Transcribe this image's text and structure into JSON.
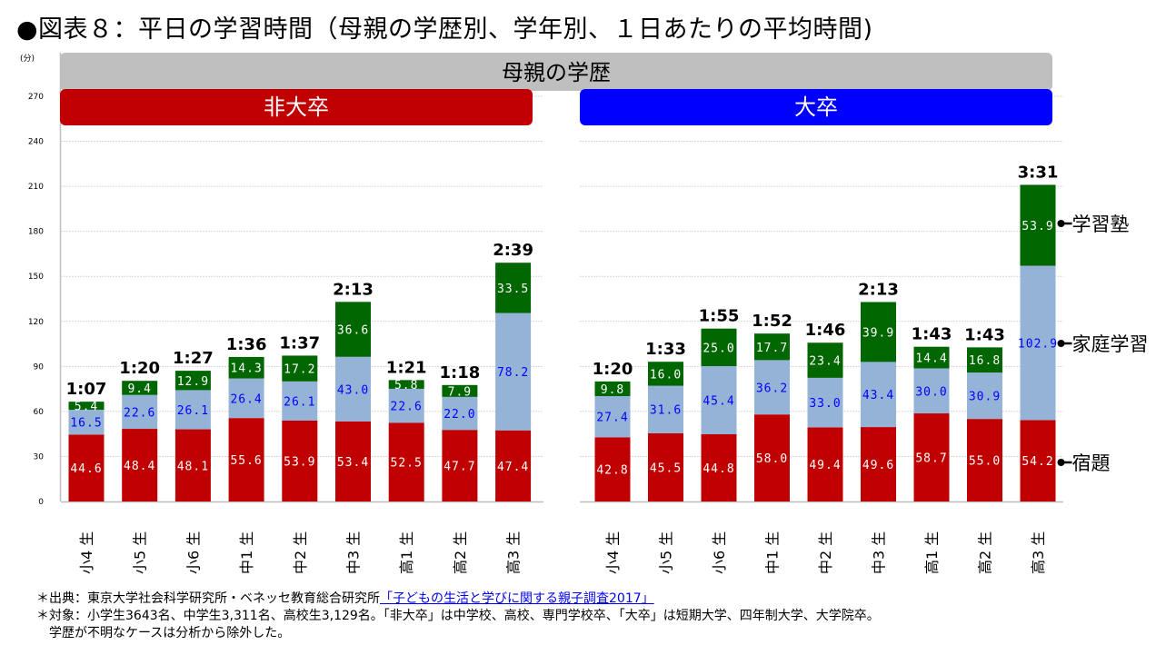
{
  "title": "●図表８：平日の学習時間（母親の学歴別、学年別、１日あたりの平均時間)",
  "banners": {
    "parent": "母親の学歴",
    "left": "非大卒",
    "right": "大卒"
  },
  "colors": {
    "homework": "#c00000",
    "home_study": "#95b3d7",
    "cram_school": "#006600",
    "homework_label": "#ffffff",
    "home_study_label": "#0000ff",
    "cram_school_label": "#ffffff",
    "banner_left": "#c00000",
    "banner_right": "#0000ff",
    "banner_parent": "#bfbfbf",
    "gridline": "#d9d9d9",
    "axis": "#bfbfbf"
  },
  "notes": {
    "source_prefix": "＊出典：東京大学社会科学研究所・ベネッセ教育総合研究所",
    "source_link": "「子どもの生活と学びに関する親子調査2017」",
    "target_line1": "＊対象：小学生3643名、中学生3,311名、高校生3,129名。「非大卒」は中学校、高校、専門学校卒、「大卒」は短期大学、四年制大学、大学院卒。",
    "target_line2": "学歴が不明なケースは分析から除外した。"
  },
  "chart_data": [
    {
      "type": "bar",
      "stacked": true,
      "title": "非大卒",
      "ylabel": "(分)",
      "ylim": [
        0,
        270
      ],
      "yticks": [
        0,
        30,
        60,
        90,
        120,
        150,
        180,
        210,
        240,
        270
      ],
      "grid": true,
      "categories": [
        "小4 生",
        "小5 生",
        "小6 生",
        "中1 生",
        "中2 生",
        "中3 生",
        "高1 生",
        "高2 生",
        "高3 生"
      ],
      "series": [
        {
          "name": "宿題",
          "values": [
            44.6,
            48.4,
            48.1,
            55.6,
            53.9,
            53.4,
            52.5,
            47.7,
            47.4
          ]
        },
        {
          "name": "家庭学習",
          "values": [
            16.5,
            22.6,
            26.1,
            26.4,
            26.1,
            43.0,
            22.6,
            22.0,
            78.2
          ]
        },
        {
          "name": "学習塾",
          "values": [
            5.4,
            9.4,
            12.9,
            14.3,
            17.2,
            36.6,
            5.8,
            7.9,
            33.5
          ]
        }
      ],
      "totals": [
        "1:07",
        "1:20",
        "1:27",
        "1:36",
        "1:37",
        "2:13",
        "1:21",
        "1:18",
        "2:39"
      ]
    },
    {
      "type": "bar",
      "stacked": true,
      "title": "大卒",
      "ylim": [
        0,
        270
      ],
      "grid": true,
      "categories": [
        "小4 生",
        "小5 生",
        "小6 生",
        "中1 生",
        "中2 生",
        "中3 生",
        "高1 生",
        "高2 生",
        "高3 生"
      ],
      "series": [
        {
          "name": "宿題",
          "values": [
            42.8,
            45.5,
            44.8,
            58.0,
            49.4,
            49.6,
            58.7,
            55.0,
            54.2
          ]
        },
        {
          "name": "家庭学習",
          "values": [
            27.4,
            31.6,
            45.4,
            36.2,
            33.0,
            43.4,
            30.0,
            30.9,
            102.9
          ]
        },
        {
          "name": "学習塾",
          "values": [
            9.8,
            16.0,
            25.0,
            17.7,
            23.4,
            39.9,
            14.4,
            16.8,
            53.9
          ]
        }
      ],
      "totals": [
        "1:20",
        "1:33",
        "1:55",
        "1:52",
        "1:46",
        "2:13",
        "1:43",
        "1:43",
        "3:31"
      ],
      "legend": [
        "学習塾",
        "家庭学習",
        "宿題"
      ],
      "legend_placement": "right"
    }
  ]
}
